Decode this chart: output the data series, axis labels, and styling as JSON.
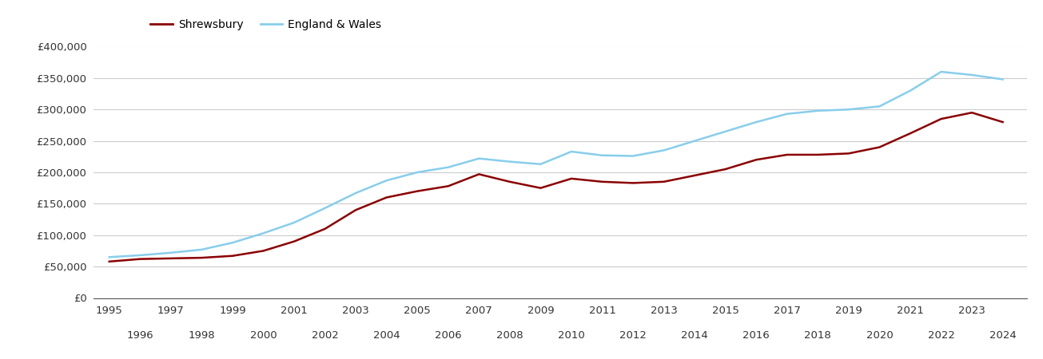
{
  "years": [
    1995,
    1996,
    1997,
    1998,
    1999,
    2000,
    2001,
    2002,
    2003,
    2004,
    2005,
    2006,
    2007,
    2008,
    2009,
    2010,
    2011,
    2012,
    2013,
    2014,
    2015,
    2016,
    2017,
    2018,
    2019,
    2020,
    2021,
    2022,
    2023,
    2024
  ],
  "shrewsbury": [
    58000,
    62000,
    63000,
    64000,
    67000,
    75000,
    90000,
    110000,
    140000,
    160000,
    170000,
    178000,
    197000,
    185000,
    175000,
    190000,
    185000,
    183000,
    185000,
    195000,
    205000,
    220000,
    228000,
    228000,
    230000,
    240000,
    262000,
    285000,
    295000,
    280000
  ],
  "england_wales": [
    65000,
    68000,
    72000,
    77000,
    88000,
    103000,
    120000,
    143000,
    167000,
    187000,
    200000,
    208000,
    222000,
    217000,
    213000,
    233000,
    227000,
    226000,
    235000,
    250000,
    265000,
    280000,
    293000,
    298000,
    300000,
    305000,
    330000,
    360000,
    355000,
    348000
  ],
  "shrewsbury_color": "#8B0000",
  "england_wales_color": "#87CEEB",
  "shrewsbury_label": "Shrewsbury",
  "england_wales_label": "England & Wales",
  "ylim": [
    0,
    400000
  ],
  "yticks": [
    0,
    50000,
    100000,
    150000,
    200000,
    250000,
    300000,
    350000,
    400000
  ],
  "bg_color": "#ffffff",
  "grid_color": "#cccccc",
  "line_width": 1.8,
  "xlim": [
    1994.5,
    2024.8
  ]
}
